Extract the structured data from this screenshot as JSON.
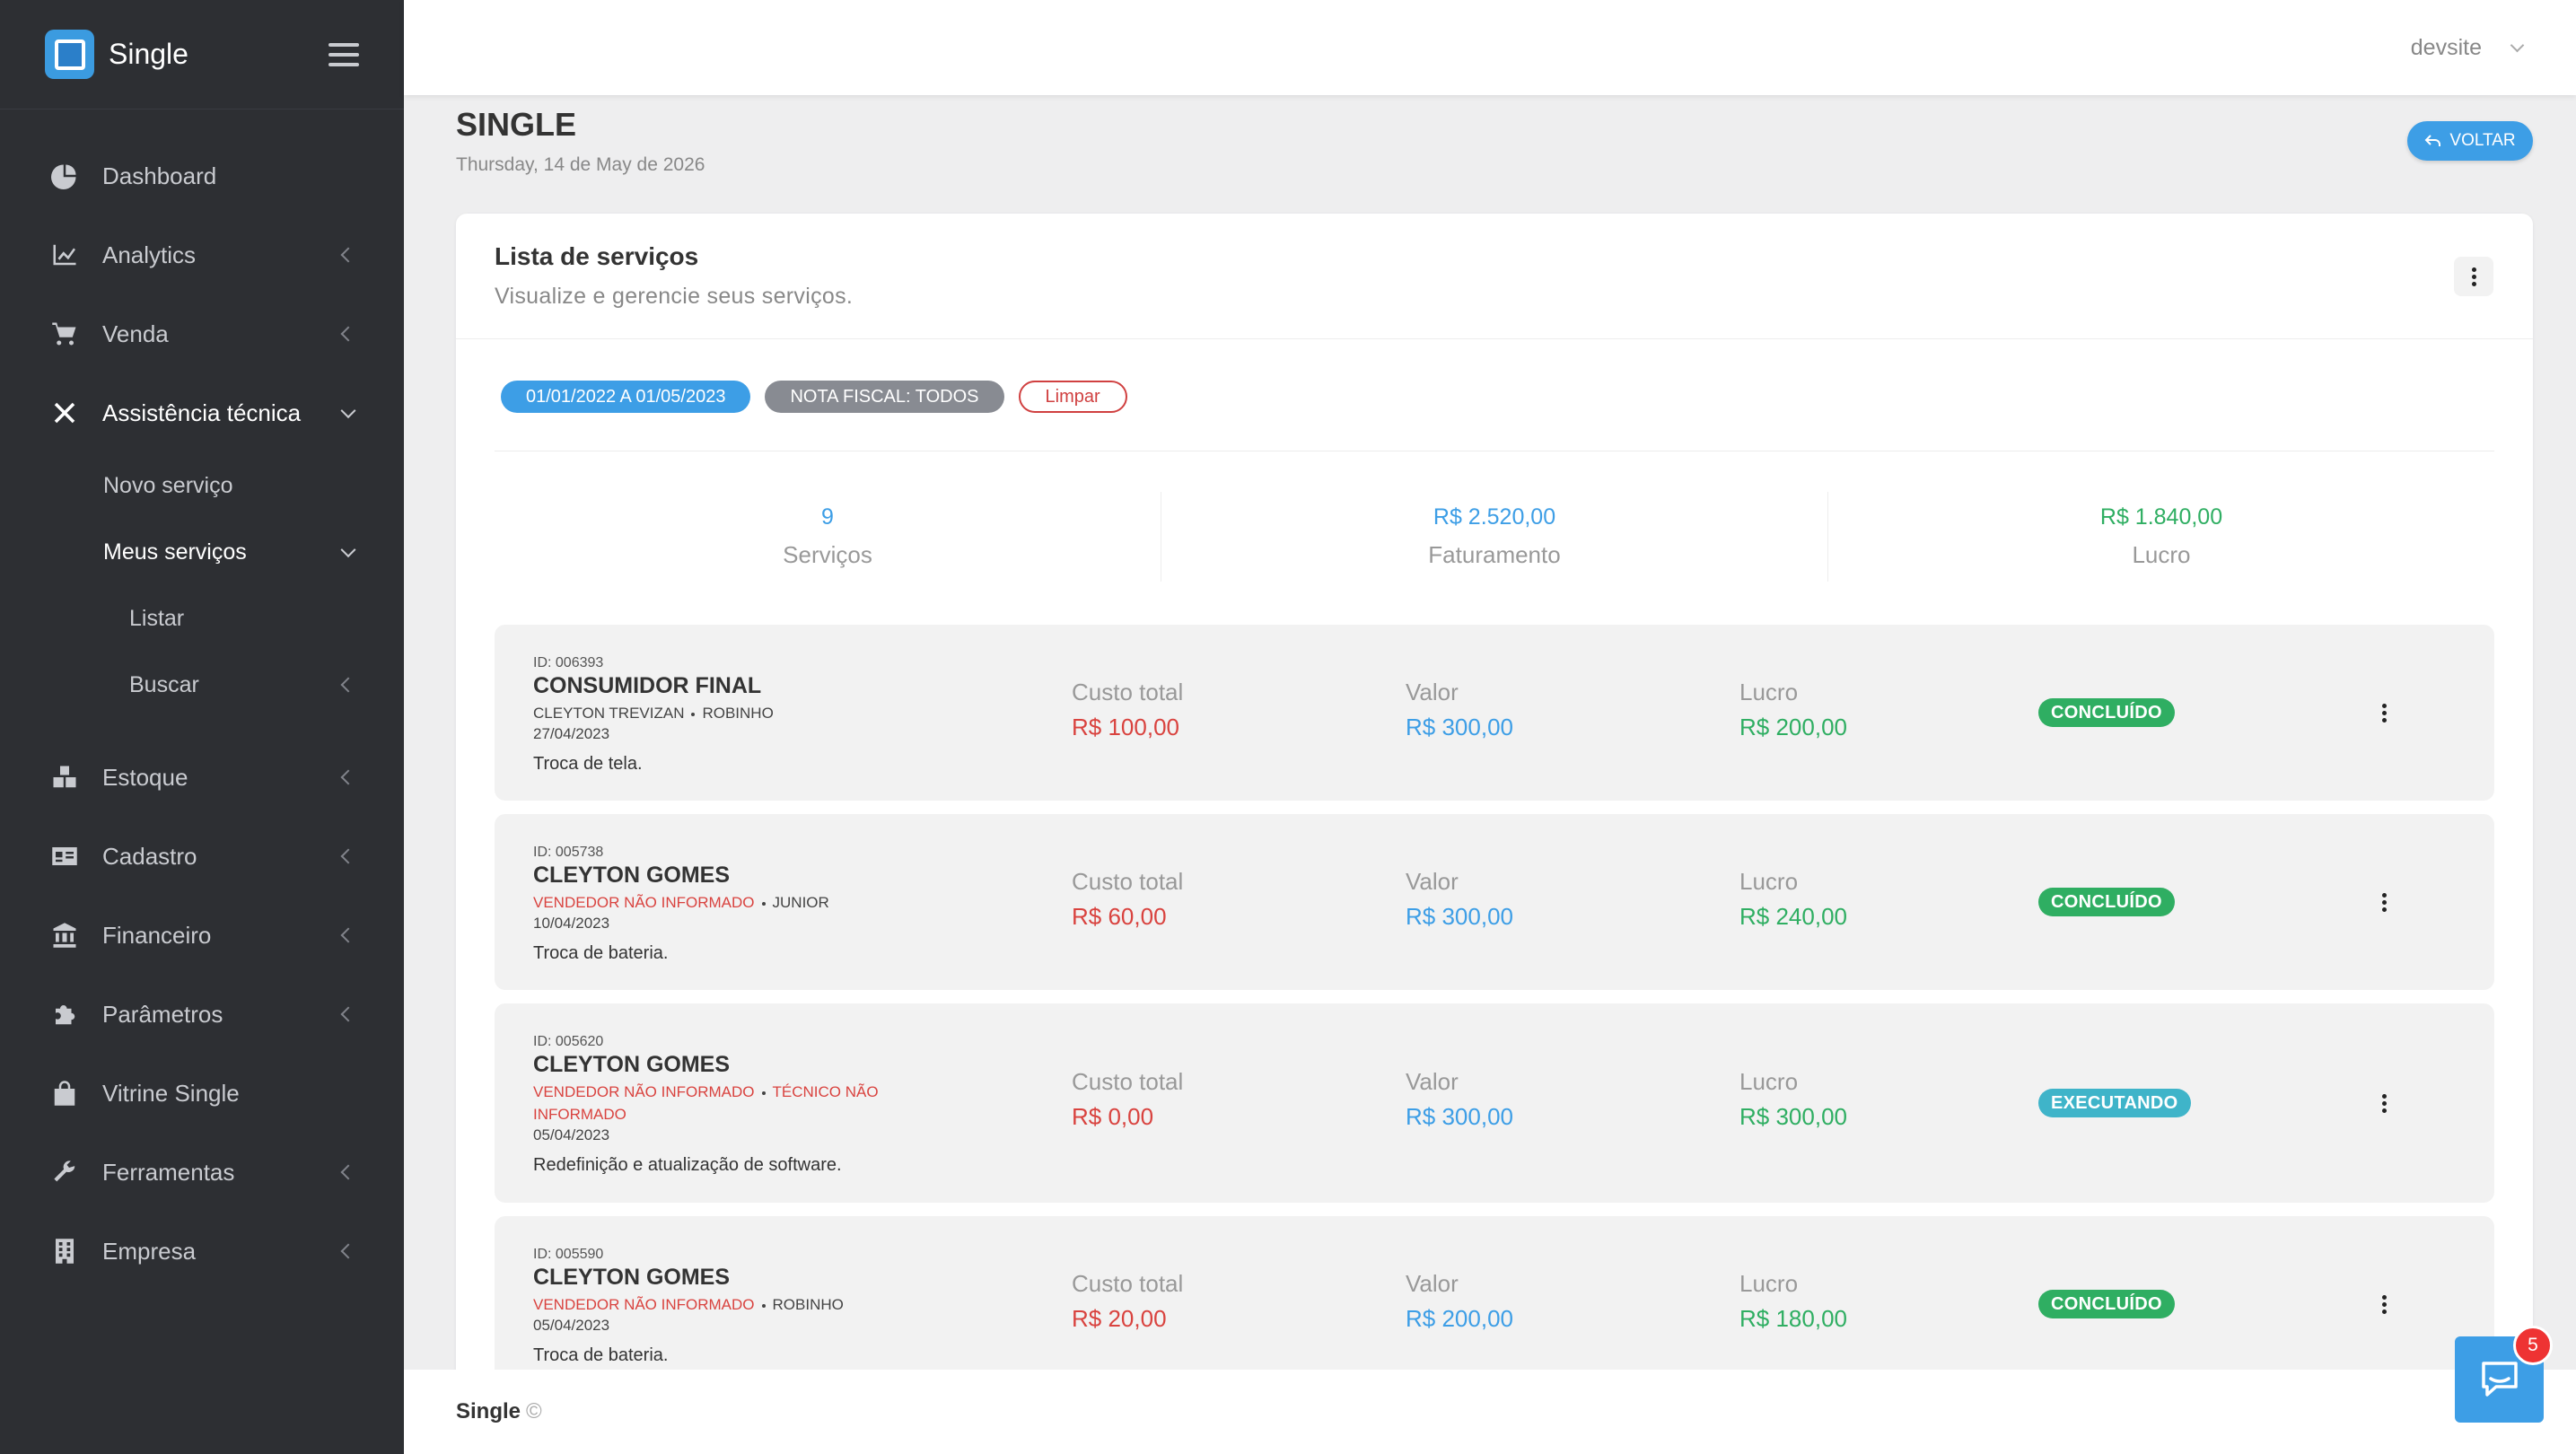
{
  "app": {
    "brand": "Single"
  },
  "user": {
    "name": "devsite"
  },
  "sidebar": {
    "items": [
      {
        "label": "Dashboard",
        "icon": "pie-chart-icon"
      },
      {
        "label": "Analytics",
        "icon": "line-chart-icon"
      },
      {
        "label": "Venda",
        "icon": "cart-icon"
      },
      {
        "label": "Assistência técnica",
        "icon": "tools-icon",
        "expanded": true,
        "children": [
          {
            "label": "Novo serviço"
          },
          {
            "label": "Meus serviços",
            "expanded": true,
            "children": [
              {
                "label": "Listar"
              },
              {
                "label": "Buscar"
              }
            ]
          }
        ]
      },
      {
        "label": "Estoque",
        "icon": "boxes-icon"
      },
      {
        "label": "Cadastro",
        "icon": "id-card-icon"
      },
      {
        "label": "Financeiro",
        "icon": "bank-icon"
      },
      {
        "label": "Parâmetros",
        "icon": "puzzle-icon"
      },
      {
        "label": "Vitrine Single",
        "icon": "shopping-bag-icon"
      },
      {
        "label": "Ferramentas",
        "icon": "wrench-icon"
      },
      {
        "label": "Empresa",
        "icon": "building-icon"
      }
    ]
  },
  "page": {
    "title": "SINGLE",
    "date": "Thursday, 14 de May de 2026",
    "back_label": "VOLTAR"
  },
  "card": {
    "title": "Lista de serviços",
    "subtitle": "Visualize e gerencie seus serviços.",
    "filters": {
      "date_range": "01/01/2022 A 01/05/2023",
      "nota_fiscal": "NOTA FISCAL: TODOS",
      "clear": "Limpar"
    },
    "stats": [
      {
        "value": "9",
        "label": "Serviços"
      },
      {
        "value": "R$ 2.520,00",
        "label": "Faturamento"
      },
      {
        "value": "R$ 1.840,00",
        "label": "Lucro"
      }
    ],
    "labels": {
      "cost": "Custo total",
      "value": "Valor",
      "profit": "Lucro"
    },
    "services": [
      {
        "id": "ID: 006393",
        "client": "CONSUMIDOR FINAL",
        "seller": "CLEYTON TREVIZAN",
        "tech": "ROBINHO",
        "date": "27/04/2023",
        "desc": "Troca de tela.",
        "cost": "R$ 100,00",
        "value": "R$ 300,00",
        "profit": "R$ 200,00",
        "status": "CONCLUÍDO"
      },
      {
        "id": "ID: 005738",
        "client": "CLEYTON GOMES",
        "seller": "VENDEDOR NÃO INFORMADO",
        "tech": "JUNIOR",
        "date": "10/04/2023",
        "desc": "Troca de bateria.",
        "cost": "R$ 60,00",
        "value": "R$ 300,00",
        "profit": "R$ 240,00",
        "status": "CONCLUÍDO"
      },
      {
        "id": "ID: 005620",
        "client": "CLEYTON GOMES",
        "seller": "VENDEDOR NÃO INFORMADO",
        "tech_line1": "TÉCNICO NÃO",
        "tech_line2": "INFORMADO",
        "date": "05/04/2023",
        "desc": "Redefinição e atualização de software.",
        "cost": "R$ 0,00",
        "value": "R$ 300,00",
        "profit": "R$ 300,00",
        "status": "EXECUTANDO"
      },
      {
        "id": "ID: 005590",
        "client": "CLEYTON GOMES",
        "seller": "VENDEDOR NÃO INFORMADO",
        "tech": "ROBINHO",
        "date": "05/04/2023",
        "desc": "Troca de bateria.",
        "cost": "R$ 20,00",
        "value": "R$ 200,00",
        "profit": "R$ 180,00",
        "status": "CONCLUÍDO"
      }
    ]
  },
  "footer": {
    "brand": "Single",
    "copy": "©"
  },
  "chat": {
    "unread": "5"
  },
  "colors": {
    "sidebar": "#2d2f33",
    "accent": "#3d9ee6",
    "success": "#2fae62",
    "danger": "#d9433f",
    "info": "#3fb4c9"
  }
}
